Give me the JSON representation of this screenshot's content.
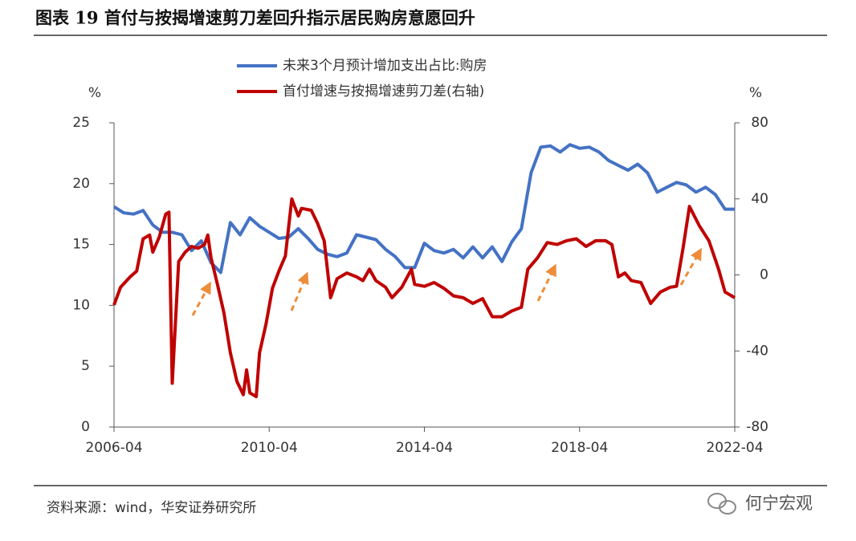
{
  "chart_data": {
    "type": "line",
    "title": "图表 19  首付与按揭增速剪刀差回升指示居民购房意愿回升",
    "y_unit": "%",
    "y2_unit": "%",
    "xlim": [
      "2006-04",
      "2022-04"
    ],
    "xticks": [
      "2006-04",
      "2010-04",
      "2014-04",
      "2018-04",
      "2022-04"
    ],
    "ylim": [
      0,
      25
    ],
    "yticks": [
      0,
      5,
      10,
      15,
      20,
      25
    ],
    "y2lim": [
      -80,
      80
    ],
    "y2ticks": [
      -80,
      -40,
      0,
      40,
      80
    ],
    "legend": "top",
    "series": [
      {
        "name": "未来3个月预计增加支出占比:购房",
        "color": "#4472c4",
        "x": [
          "2006-04",
          "2006-07",
          "2006-10",
          "2007-01",
          "2007-04",
          "2007-07",
          "2007-10",
          "2008-01",
          "2008-04",
          "2008-07",
          "2008-10",
          "2009-01",
          "2009-04",
          "2009-07",
          "2009-10",
          "2010-01",
          "2010-04",
          "2010-07",
          "2010-10",
          "2011-01",
          "2011-04",
          "2011-07",
          "2011-10",
          "2012-01",
          "2012-04",
          "2012-07",
          "2012-10",
          "2013-01",
          "2013-04",
          "2013-07",
          "2013-10",
          "2014-01",
          "2014-04",
          "2014-07",
          "2014-10",
          "2015-01",
          "2015-04",
          "2015-07",
          "2015-10",
          "2016-01",
          "2016-04",
          "2016-07",
          "2016-10",
          "2017-01",
          "2017-04",
          "2017-07",
          "2017-10",
          "2018-01",
          "2018-04",
          "2018-07",
          "2018-10",
          "2019-01",
          "2019-04",
          "2019-07",
          "2019-10",
          "2020-01",
          "2020-04",
          "2020-07",
          "2020-10",
          "2021-01",
          "2021-04",
          "2021-07",
          "2021-10",
          "2022-01",
          "2022-04"
        ],
        "values": [
          18.1,
          17.6,
          17.5,
          17.8,
          16.6,
          16.0,
          16.0,
          15.8,
          14.5,
          15.3,
          13.5,
          12.7,
          16.8,
          15.8,
          17.2,
          16.5,
          16.0,
          15.5,
          15.6,
          16.3,
          15.5,
          14.6,
          14.2,
          14.0,
          14.3,
          15.8,
          15.6,
          15.4,
          14.6,
          14.0,
          13.1,
          13.1,
          15.1,
          14.5,
          14.3,
          14.6,
          13.9,
          14.8,
          13.9,
          14.8,
          13.6,
          15.2,
          16.3,
          20.9,
          23.0,
          23.1,
          22.6,
          23.2,
          22.9,
          23.0,
          22.6,
          21.9,
          21.5,
          21.1,
          21.6,
          20.9,
          19.3,
          19.7,
          20.1,
          19.9,
          19.3,
          19.7,
          19.1,
          17.9,
          17.9
        ]
      },
      {
        "name": "首付增速与按揭增速剪刀差(右轴)",
        "color": "#c00000",
        "axis": "y2",
        "x": [
          "2006-04",
          "2006-06",
          "2006-09",
          "2006-11",
          "2007-01",
          "2007-03",
          "2007-04",
          "2007-06",
          "2007-08",
          "2007-09",
          "2007-10",
          "2007-12",
          "2008-02",
          "2008-04",
          "2008-06",
          "2008-08",
          "2008-09",
          "2008-10",
          "2008-12",
          "2009-02",
          "2009-04",
          "2009-06",
          "2009-08",
          "2009-09",
          "2009-10",
          "2009-12",
          "2010-01",
          "2010-03",
          "2010-05",
          "2010-07",
          "2010-09",
          "2010-11",
          "2011-01",
          "2011-02",
          "2011-05",
          "2011-07",
          "2011-09",
          "2011-11",
          "2012-01",
          "2012-04",
          "2012-07",
          "2012-09",
          "2012-11",
          "2013-01",
          "2013-04",
          "2013-06",
          "2013-09",
          "2013-12",
          "2014-01",
          "2014-04",
          "2014-07",
          "2014-10",
          "2015-01",
          "2015-04",
          "2015-07",
          "2015-10",
          "2016-01",
          "2016-04",
          "2016-07",
          "2016-10",
          "2016-12",
          "2017-03",
          "2017-06",
          "2017-09",
          "2017-12",
          "2018-03",
          "2018-06",
          "2018-09",
          "2018-12",
          "2019-02",
          "2019-04",
          "2019-06",
          "2019-08",
          "2019-11",
          "2020-02",
          "2020-05",
          "2020-08",
          "2020-10",
          "2020-12",
          "2021-02",
          "2021-05",
          "2021-08",
          "2021-11",
          "2022-01",
          "2022-04"
        ],
        "values": [
          -15.8,
          -6.5,
          -1,
          2,
          19,
          21,
          12,
          20,
          32,
          33,
          -57,
          7,
          12,
          15,
          14,
          16,
          21,
          9,
          -5,
          -20,
          -41,
          -56,
          -63,
          -50,
          -62,
          -64,
          -41,
          -26,
          -7,
          2,
          10,
          40,
          31,
          35,
          34,
          27,
          18,
          -12,
          -2,
          1,
          -1,
          -3,
          3,
          -3,
          -6.5,
          -12,
          -6.5,
          3,
          -5,
          -6,
          -4,
          -7,
          -11,
          -12,
          -15,
          -12.5,
          -22,
          -22,
          -19,
          -17,
          3,
          9,
          17,
          16,
          18,
          19,
          15,
          18,
          18,
          16,
          -1,
          1,
          -3,
          -4,
          -15,
          -9,
          -6.5,
          -6,
          14,
          36,
          26,
          18,
          3,
          -9,
          -12
        ]
      }
    ]
  },
  "footer": {
    "source": "资料来源：wind，华安证券研究所",
    "watermark": "何宁宏观"
  }
}
